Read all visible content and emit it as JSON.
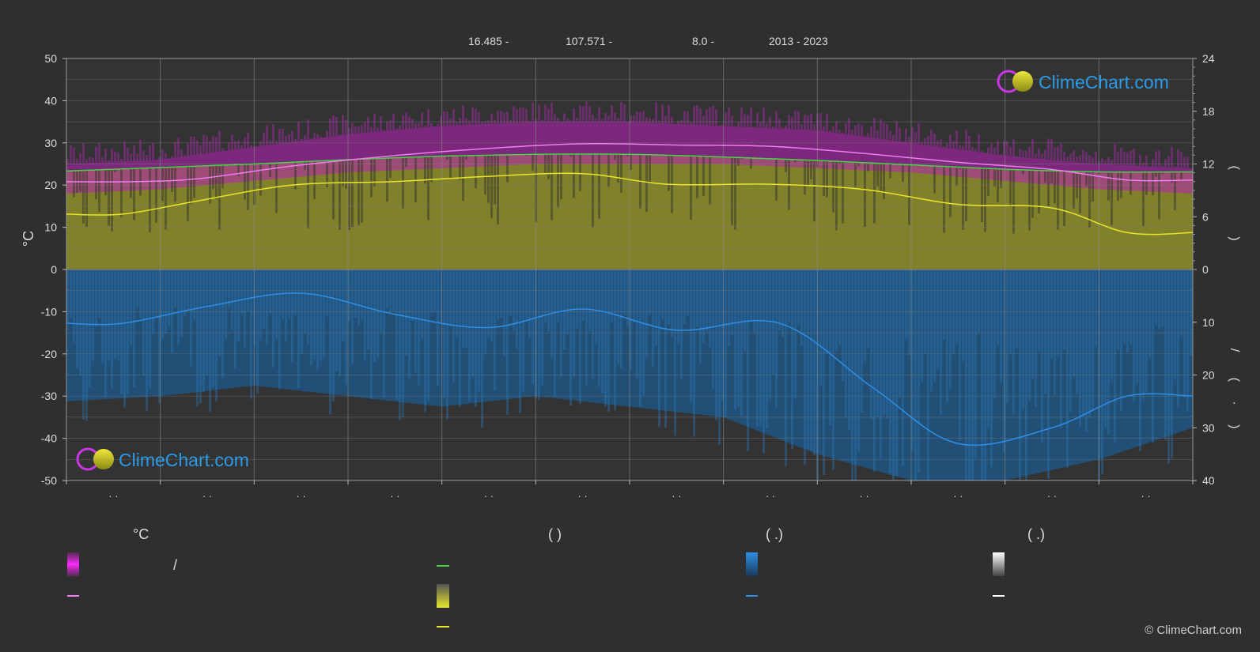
{
  "header": {
    "lat": "16.485 -",
    "lon": "107.571 -",
    "elev": "8.0 -",
    "years": "2013 - 2023"
  },
  "brand": {
    "name": "ClimeChart.com",
    "copyright": "© ClimeChart.com"
  },
  "axes": {
    "left_unit": "°C",
    "right_upper_label": "(  )",
    "right_lower_label_a": "/",
    "right_lower_label_b": "( · )"
  },
  "legend": {
    "col1_title": "°C",
    "col1_item1_sep": "/",
    "col2_title": "(        )",
    "col3_title": "(   .)",
    "col4_title": "(   .)"
  },
  "colors": {
    "background": "#2f2f2f",
    "grid": "#6a6a6a",
    "temp_band": "#d41fd4",
    "temp_mean": "#f07cf0",
    "daylight": "#44d544",
    "sunshine_band": "#c8c832",
    "sunshine_mean": "#e6e62a",
    "rain_band": "#1e6eb4",
    "rain_mean": "#2d8fe6"
  },
  "chart_data": {
    "type": "line",
    "x_months": 12,
    "left_axis": {
      "label": "°C",
      "ylim": [
        -50,
        50
      ],
      "ticks": [
        50,
        40,
        30,
        20,
        10,
        0,
        -10,
        -20,
        -30,
        -40,
        -50
      ]
    },
    "right_axis_upper": {
      "ylim": [
        0,
        24
      ],
      "ticks": [
        24,
        18,
        12,
        6,
        0
      ]
    },
    "right_axis_lower": {
      "ylim": [
        0,
        40
      ],
      "ticks": [
        10,
        20,
        30,
        40
      ],
      "inverted": true
    },
    "month_tick_labels": [
      "· ·",
      "· ·",
      "· ·",
      "· ·",
      "· ·",
      "· ·",
      "· ·",
      "· ·",
      "· ·",
      "· ·",
      "· ·",
      "· ·"
    ],
    "series": [
      {
        "key": "daylight",
        "axis": "right_upper",
        "points": [
          [
            0,
            11.2
          ],
          [
            1,
            11.6
          ],
          [
            2,
            12.0
          ],
          [
            3,
            12.5
          ],
          [
            4,
            12.9
          ],
          [
            5,
            13.1
          ],
          [
            6,
            13.1
          ],
          [
            7,
            12.8
          ],
          [
            8,
            12.4
          ],
          [
            9,
            11.9
          ],
          [
            10,
            11.4
          ],
          [
            11,
            11.1
          ],
          [
            12,
            11.1
          ]
        ]
      },
      {
        "key": "temp_mean",
        "axis": "left",
        "points": [
          [
            0,
            20.8
          ],
          [
            0.7,
            20.8
          ],
          [
            1.4,
            21.5
          ],
          [
            2.4,
            24.5
          ],
          [
            3.5,
            27
          ],
          [
            4.5,
            28.7
          ],
          [
            5.5,
            29.8
          ],
          [
            6.5,
            29.5
          ],
          [
            7.5,
            29.2
          ],
          [
            8.5,
            27.5
          ],
          [
            9.5,
            25.4
          ],
          [
            10.5,
            23.7
          ],
          [
            11.3,
            21.2
          ],
          [
            12,
            21.2
          ]
        ]
      },
      {
        "key": "sunshine_mean",
        "axis": "right_upper",
        "points": [
          [
            0,
            6.3
          ],
          [
            0.6,
            6.3
          ],
          [
            1.4,
            7.8
          ],
          [
            2.4,
            9.6
          ],
          [
            3.5,
            10.0
          ],
          [
            4.5,
            10.6
          ],
          [
            5.5,
            10.9
          ],
          [
            6.4,
            9.7
          ],
          [
            7.5,
            9.7
          ],
          [
            8.5,
            9.1
          ],
          [
            9.5,
            7.4
          ],
          [
            10.5,
            7.0
          ],
          [
            11.3,
            4.2
          ],
          [
            12,
            4.2
          ]
        ]
      },
      {
        "key": "rain_mean",
        "axis": "right_lower",
        "points": [
          [
            0,
            10.2
          ],
          [
            0.6,
            10.2
          ],
          [
            1.5,
            7.0
          ],
          [
            2.5,
            4.5
          ],
          [
            3.5,
            8.5
          ],
          [
            4.5,
            11.0
          ],
          [
            5.5,
            7.5
          ],
          [
            6.5,
            11.5
          ],
          [
            7.6,
            10.2
          ],
          [
            8.6,
            22.5
          ],
          [
            9.5,
            33.0
          ],
          [
            10.5,
            30.0
          ],
          [
            11.3,
            24.0
          ],
          [
            12,
            24.0
          ]
        ]
      }
    ],
    "bands": [
      {
        "key": "temp_range",
        "axis": "left",
        "low": [
          18,
          19,
          21,
          23,
          24,
          25,
          25,
          25,
          24,
          23,
          21,
          19,
          18
        ],
        "high": [
          25,
          26,
          29,
          32,
          34,
          35,
          35,
          34,
          33,
          30,
          27,
          25,
          24
        ]
      },
      {
        "key": "sunshine_range",
        "axis": "right_upper",
        "high": [
          11.2,
          11.6,
          12.0,
          12.5,
          12.9,
          13.1,
          13.1,
          12.8,
          12.4,
          11.9,
          11.4,
          11.1,
          11.1
        ]
      },
      {
        "key": "rain_range",
        "axis": "right_lower",
        "high": [
          25,
          24,
          22,
          24,
          26,
          24,
          26,
          28,
          35,
          40,
          40,
          36,
          30
        ]
      }
    ]
  }
}
